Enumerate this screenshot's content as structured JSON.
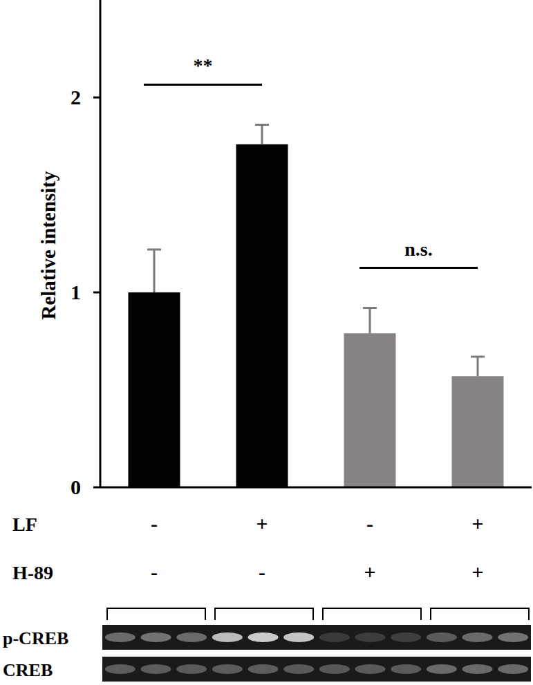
{
  "chart_data": {
    "type": "bar",
    "y_label": "Relative intensity",
    "categories": [
      null,
      null,
      null,
      null
    ],
    "values": [
      1.0,
      1.76,
      0.79,
      0.57
    ],
    "errors": [
      0.22,
      0.1,
      0.13,
      0.1
    ],
    "colors": [
      "#000000",
      "#000000",
      "#868382",
      "#868382"
    ],
    "ylim": [
      0,
      2.5
    ],
    "yticks": [
      0,
      1,
      2
    ],
    "grid": false,
    "treatments": [
      {
        "name": "LF",
        "values": [
          "-",
          "+",
          "-",
          "+"
        ]
      },
      {
        "name": "H-89",
        "values": [
          "-",
          "-",
          "+",
          "+"
        ]
      }
    ],
    "annotations": [
      {
        "text": "**",
        "from": 0,
        "to": 1
      },
      {
        "text": "n.s.",
        "from": 2,
        "to": 3
      }
    ],
    "blot_labels": [
      "p-CREB",
      "CREB"
    ]
  }
}
